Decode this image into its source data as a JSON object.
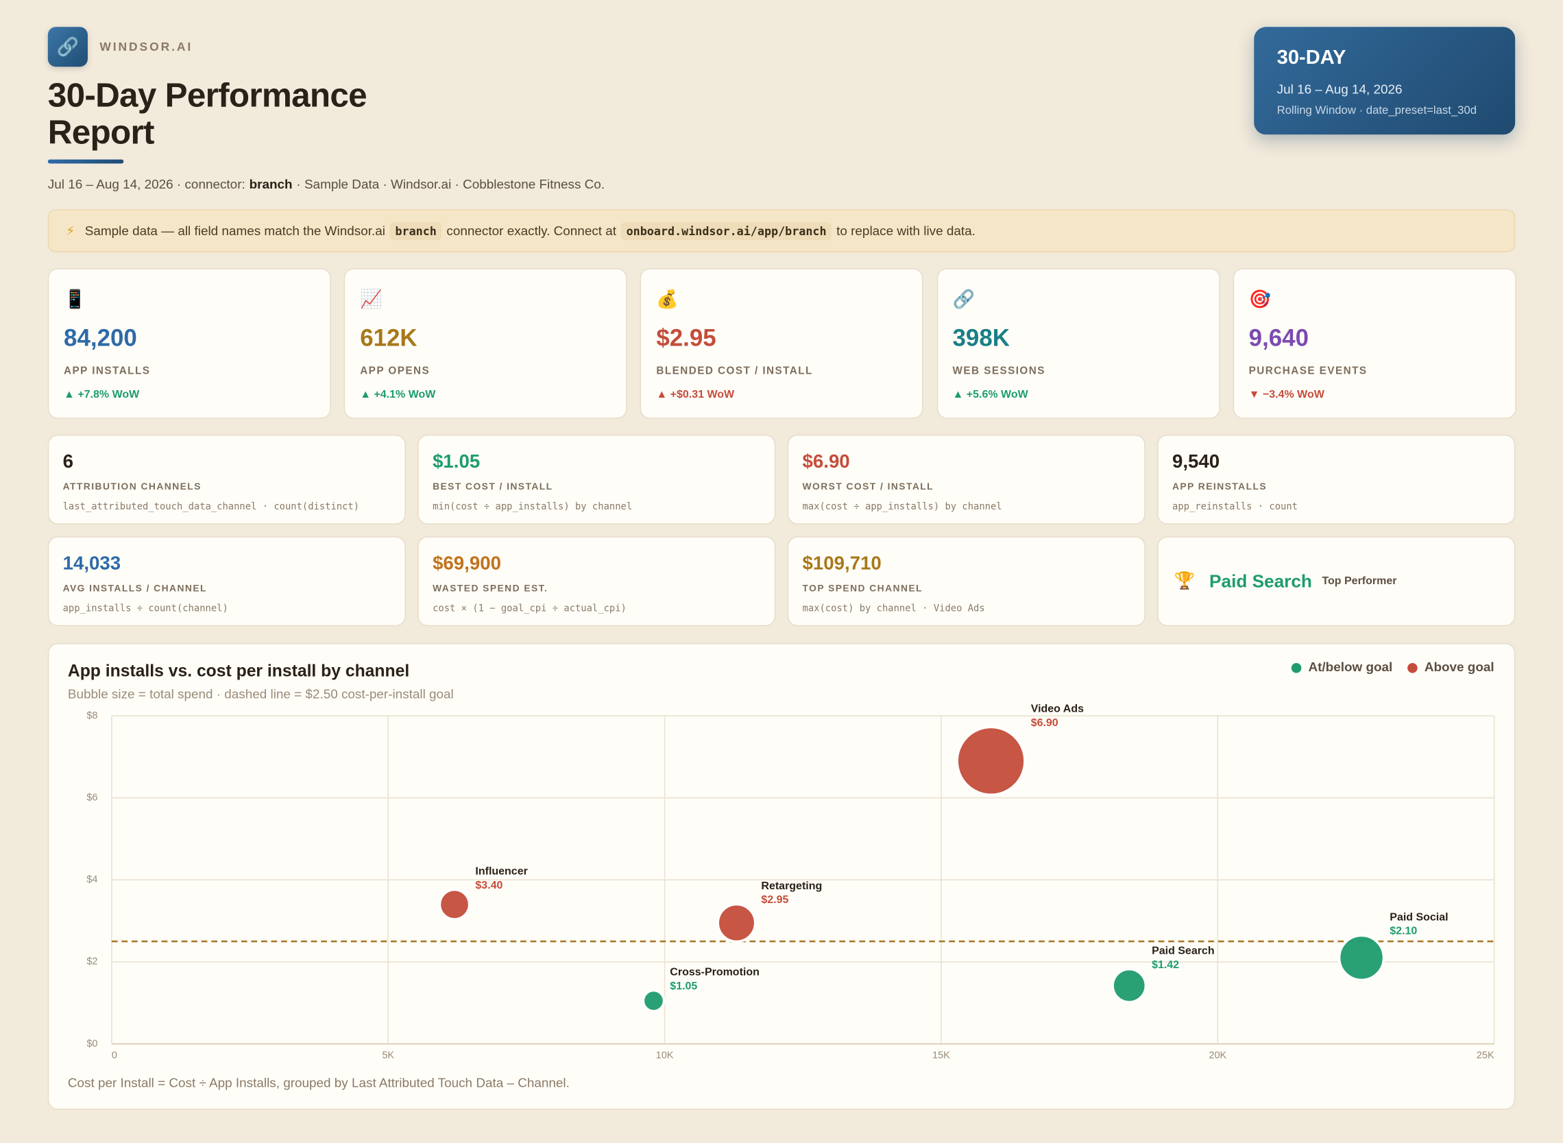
{
  "header": {
    "logo": "🔗",
    "brand": "WINDSOR.AI",
    "title": "30-Day Performance Report",
    "meta": {
      "dates": "Jul 16 – Aug 14, 2026 · connector:",
      "connector": "branch",
      "rest": "· Sample Data · Windsor.ai · Cobblestone Fitness Co."
    }
  },
  "badge": {
    "title": "30-DAY",
    "dates": "Jul 16 – Aug 14, 2026",
    "note": "Rolling Window · date_preset=last_30d"
  },
  "notice": {
    "icon": "⚡",
    "text1": "Sample data — all field names match the Windsor.ai",
    "code1": "branch",
    "text2": "connector exactly. Connect at",
    "code2": "onboard.windsor.ai/app/branch",
    "text3": "to replace with live data."
  },
  "kpis": [
    {
      "icon": "📱",
      "value": "84,200",
      "label": "APP INSTALLS",
      "delta": "▲ +7.8% WoW",
      "color": "#2e6aa8",
      "delta_color": "#1e9c6e"
    },
    {
      "icon": "📈",
      "value": "612K",
      "label": "APP OPENS",
      "delta": "▲ +4.1% WoW",
      "color": "#a8781a",
      "delta_color": "#1e9c6e"
    },
    {
      "icon": "💰",
      "value": "$2.95",
      "label": "BLENDED COST / INSTALL",
      "delta": "▲ +$0.31 WoW",
      "color": "#c44d3a",
      "delta_color": "#c44d3a"
    },
    {
      "icon": "🔗",
      "value": "398K",
      "label": "WEB SESSIONS",
      "delta": "▲ +5.6% WoW",
      "color": "#1a7f86",
      "delta_color": "#1e9c6e"
    },
    {
      "icon": "🎯",
      "value": "9,640",
      "label": "PURCHASE EVENTS",
      "delta": "▼ −3.4% WoW",
      "color": "#7b4bb0",
      "delta_color": "#c44d3a"
    }
  ],
  "metrics": [
    {
      "value": "6",
      "label": "ATTRIBUTION CHANNELS",
      "formula": "last_attributed_touch_data_channel · count(distinct)",
      "color": "#2a2118"
    },
    {
      "value": "$1.05",
      "label": "BEST COST / INSTALL",
      "formula": "min(cost ÷ app_installs) by channel",
      "color": "#1e9c6e"
    },
    {
      "value": "$6.90",
      "label": "WORST COST / INSTALL",
      "formula": "max(cost ÷ app_installs) by channel",
      "color": "#c44d3a"
    },
    {
      "value": "9,540",
      "label": "APP REINSTALLS",
      "formula": "app_reinstalls · count",
      "color": "#2a2118"
    },
    {
      "value": "14,033",
      "label": "AVG INSTALLS / CHANNEL",
      "formula": "app_installs ÷ count(channel)",
      "color": "#2e6aa8"
    },
    {
      "value": "$69,900",
      "label": "WASTED SPEND EST.",
      "formula": "cost × (1 − goal_cpi ÷ actual_cpi)",
      "color": "#c0731c"
    },
    {
      "value": "$109,710",
      "label": "TOP SPEND CHANNEL",
      "formula": "max(cost) by channel · Video Ads",
      "color": "#a8781a"
    }
  ],
  "top_performer": {
    "icon": "🏆",
    "name": "Paid Search",
    "label": "Top Performer"
  },
  "chart_data": {
    "type": "bubble",
    "title": "App installs vs. cost per install by channel",
    "subtitle": "Bubble size = total spend · dashed line = $2.50 cost-per-install goal",
    "footnote": "Cost per Install = Cost ÷ App Installs, grouped by Last Attributed Touch Data – Channel.",
    "series": [
      {
        "name": "At/below goal",
        "color": "#1e9c6e",
        "labels": [
          "Cross-Promotion",
          "Paid Search",
          "Paid Social"
        ],
        "x": [
          9800,
          18400,
          22600
        ],
        "values": [
          1.05,
          1.42,
          2.1
        ],
        "value_labels": [
          "$1.05",
          "$1.42",
          "$2.10"
        ],
        "sizes": [
          10290,
          26128,
          47460
        ]
      },
      {
        "name": "Above goal",
        "color": "#c44d3a",
        "labels": [
          "Influencer",
          "Retargeting",
          "Video Ads"
        ],
        "x": [
          6200,
          11300,
          15900
        ],
        "values": [
          3.4,
          2.95,
          6.9
        ],
        "value_labels": [
          "$3.40",
          "$2.95",
          "$6.90"
        ],
        "sizes": [
          21080,
          33335,
          109710
        ]
      }
    ],
    "goal_line": {
      "value": 2.5,
      "color": "#a87a2a"
    },
    "xlim": [
      0,
      25000
    ],
    "xticks": [
      0,
      {
        "value": 5000,
        "label": "5K"
      },
      {
        "value": 10000,
        "label": "10K"
      },
      {
        "value": 15000,
        "label": "15K"
      },
      {
        "value": 20000,
        "label": "20K"
      },
      {
        "value": 25000,
        "label": "25K"
      }
    ],
    "ylim": [
      0,
      8
    ],
    "yticks": [
      {
        "value": 0,
        "label": "$0"
      },
      {
        "value": 2,
        "label": "$2"
      },
      {
        "value": 4,
        "label": "$4"
      },
      {
        "value": 6,
        "label": "$6"
      },
      {
        "value": 8,
        "label": "$8"
      }
    ],
    "grid": true,
    "legend": "top-right"
  }
}
